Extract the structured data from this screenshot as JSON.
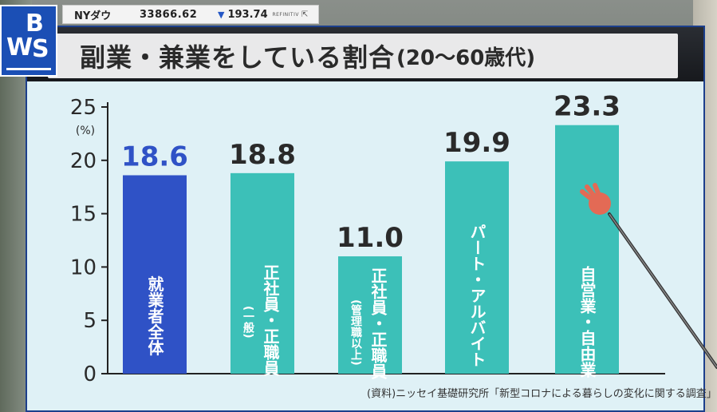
{
  "broadcast": {
    "logo_letters": [
      "W",
      "B",
      "S"
    ],
    "ticker": {
      "name": "NYダウ",
      "value": "33866.62",
      "change": "193.74",
      "direction": "down",
      "source": "REFINITIV"
    }
  },
  "chart_data": {
    "type": "bar",
    "title": "副業・兼業をしている割合",
    "subtitle": "(20〜60歳代)",
    "y_unit": "(%)",
    "ylim": [
      0,
      25
    ],
    "yticks": [
      "0",
      "5",
      "10",
      "15",
      "20",
      "25"
    ],
    "grid": false,
    "bar_labels": [
      {
        "main": "就業者全体",
        "sub": ""
      },
      {
        "main": "正社員・正職員",
        "sub": "(一般)"
      },
      {
        "main": "正社員・正職員",
        "sub": "(管理職以上)"
      },
      {
        "main": "パート・アルバイト",
        "sub": ""
      },
      {
        "main": "自営業・自由業",
        "sub": ""
      }
    ],
    "values": [
      18.6,
      18.8,
      11.0,
      19.9,
      23.3
    ],
    "value_labels": [
      "18.6",
      "18.8",
      "11.0",
      "19.9",
      "23.3"
    ],
    "colors": [
      "#2f52c6",
      "#3cc0b8",
      "#3cc0b8",
      "#3cc0b8",
      "#3cc0b8"
    ],
    "value_label_colors": [
      "#2f52c6",
      "#2a2a2a",
      "#2a2a2a",
      "#2a2a2a",
      "#2a2a2a"
    ],
    "source": "(資料)ニッセイ基礎研究所「新型コロナによる暮らしの変化に関する調査」"
  }
}
